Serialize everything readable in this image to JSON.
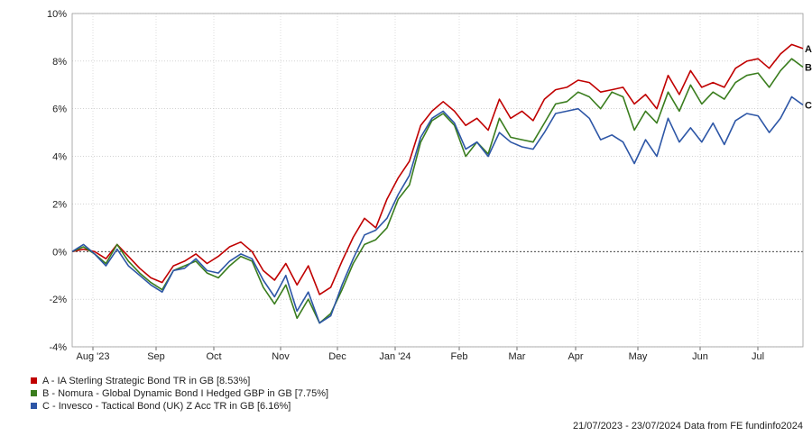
{
  "chart_data": {
    "type": "line",
    "y_ticks": [
      "10%",
      "8%",
      "6%",
      "4%",
      "2%",
      "0%",
      "-2%",
      "-4%"
    ],
    "y_values": [
      10,
      8,
      6,
      4,
      2,
      0,
      -2,
      -4
    ],
    "ylim": [
      -4,
      10
    ],
    "x_tick_labels": [
      "Aug '23",
      "Sep",
      "Oct",
      "Nov",
      "Dec",
      "Jan '24",
      "Feb",
      "Mar",
      "Apr",
      "May",
      "Jun",
      "Jul"
    ],
    "grid": true,
    "series": [
      {
        "key": "A",
        "name": "A - IA Sterling Strategic Bond TR in GB [8.53%]",
        "color": "#c00000",
        "values": [
          0,
          0.1,
          0.0,
          -0.3,
          0.3,
          -0.2,
          -0.7,
          -1.1,
          -1.3,
          -0.6,
          -0.4,
          -0.1,
          -0.5,
          -0.2,
          0.2,
          0.4,
          0.0,
          -0.8,
          -1.2,
          -0.5,
          -1.4,
          -0.6,
          -1.8,
          -1.5,
          -0.4,
          0.6,
          1.4,
          1.0,
          2.2,
          3.1,
          3.8,
          5.3,
          5.9,
          6.3,
          5.9,
          5.3,
          5.6,
          5.1,
          6.4,
          5.6,
          5.9,
          5.5,
          6.4,
          6.8,
          6.9,
          7.2,
          7.1,
          6.7,
          6.8,
          6.9,
          6.2,
          6.6,
          6.0,
          7.4,
          6.6,
          7.6,
          6.9,
          7.1,
          6.9,
          7.7,
          8.0,
          8.1,
          7.7,
          8.3,
          8.7,
          8.53
        ]
      },
      {
        "key": "B",
        "name": "B - Nomura - Global Dynamic Bond I Hedged GBP in GB [7.75%]",
        "color": "#3a7d1e",
        "values": [
          0,
          0.2,
          -0.1,
          -0.5,
          0.3,
          -0.4,
          -0.9,
          -1.3,
          -1.6,
          -0.8,
          -0.6,
          -0.4,
          -0.9,
          -1.1,
          -0.6,
          -0.2,
          -0.4,
          -1.5,
          -2.2,
          -1.4,
          -2.8,
          -2.0,
          -3.0,
          -2.6,
          -1.6,
          -0.5,
          0.3,
          0.5,
          1.0,
          2.2,
          2.8,
          4.6,
          5.5,
          5.8,
          5.3,
          4.0,
          4.6,
          4.1,
          5.6,
          4.8,
          4.7,
          4.6,
          5.4,
          6.2,
          6.3,
          6.7,
          6.5,
          6.0,
          6.7,
          6.5,
          5.1,
          5.9,
          5.4,
          6.7,
          5.9,
          7.0,
          6.2,
          6.7,
          6.4,
          7.1,
          7.4,
          7.5,
          6.9,
          7.6,
          8.1,
          7.75
        ]
      },
      {
        "key": "C",
        "name": "C - Invesco - Tactical Bond (UK) Z Acc TR in GB [6.16%]",
        "color": "#2d56a6",
        "values": [
          0,
          0.3,
          -0.1,
          -0.6,
          0.1,
          -0.6,
          -1.0,
          -1.4,
          -1.7,
          -0.8,
          -0.7,
          -0.3,
          -0.8,
          -0.9,
          -0.4,
          -0.1,
          -0.3,
          -1.2,
          -1.9,
          -1.0,
          -2.5,
          -1.7,
          -3.0,
          -2.7,
          -1.4,
          -0.3,
          0.7,
          0.9,
          1.4,
          2.4,
          3.2,
          4.8,
          5.6,
          5.9,
          5.4,
          4.3,
          4.6,
          4.0,
          5.0,
          4.6,
          4.4,
          4.3,
          5.0,
          5.8,
          5.9,
          6.0,
          5.6,
          4.7,
          4.9,
          4.6,
          3.7,
          4.7,
          4.0,
          5.6,
          4.6,
          5.2,
          4.6,
          5.4,
          4.5,
          5.5,
          5.8,
          5.7,
          5.0,
          5.6,
          6.5,
          6.16
        ]
      }
    ]
  },
  "legend": [
    {
      "label": "A - IA Sterling Strategic Bond TR in GB [8.53%]",
      "color": "#c00000"
    },
    {
      "label": "B - Nomura - Global Dynamic Bond I Hedged GBP in GB [7.75%]",
      "color": "#3a7d1e"
    },
    {
      "label": "C - Invesco - Tactical Bond (UK) Z Acc TR in GB [6.16%]",
      "color": "#2d56a6"
    }
  ],
  "footer": "21/07/2023 - 23/07/2024 Data from FE fundinfo2024"
}
